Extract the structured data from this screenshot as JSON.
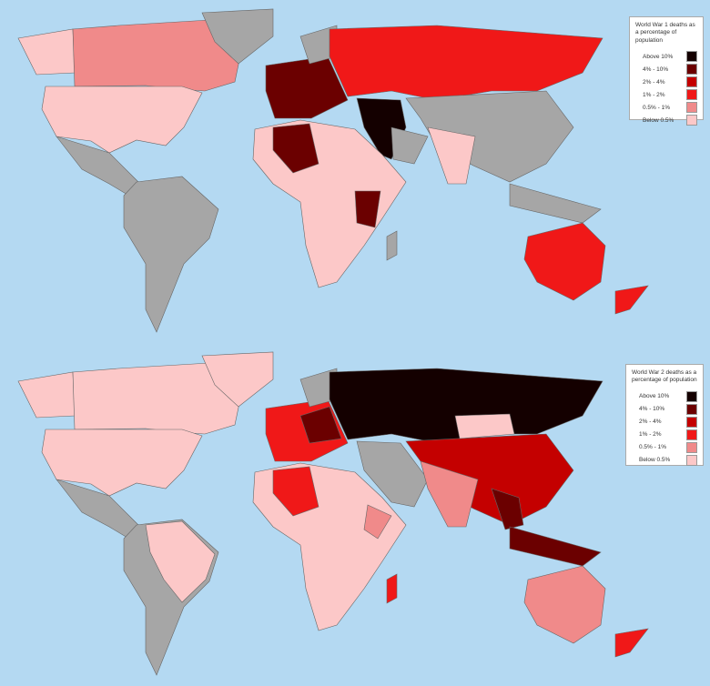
{
  "maps": [
    {
      "legend": {
        "title": "World War 1 deaths as a percentage of population",
        "entries": [
          {
            "label": "Above 10%",
            "color": "#140000"
          },
          {
            "label": "4% - 10%",
            "color": "#6b0000"
          },
          {
            "label": "2% - 4%",
            "color": "#c40000"
          },
          {
            "label": "1% - 2%",
            "color": "#f01818"
          },
          {
            "label": "0.5% - 1%",
            "color": "#f08a8a"
          },
          {
            "label": "Below 0.5%",
            "color": "#fcc8c8"
          }
        ]
      }
    },
    {
      "legend": {
        "title": "World War 2 deaths as a percentage of population",
        "entries": [
          {
            "label": "Above 10%",
            "color": "#140000"
          },
          {
            "label": "4% - 10%",
            "color": "#6b0000"
          },
          {
            "label": "2% - 4%",
            "color": "#c40000"
          },
          {
            "label": "1% - 2%",
            "color": "#f01818"
          },
          {
            "label": "0.5% - 1%",
            "color": "#f08a8a"
          },
          {
            "label": "Below 0.5%",
            "color": "#fcc8c8"
          }
        ]
      }
    }
  ]
}
